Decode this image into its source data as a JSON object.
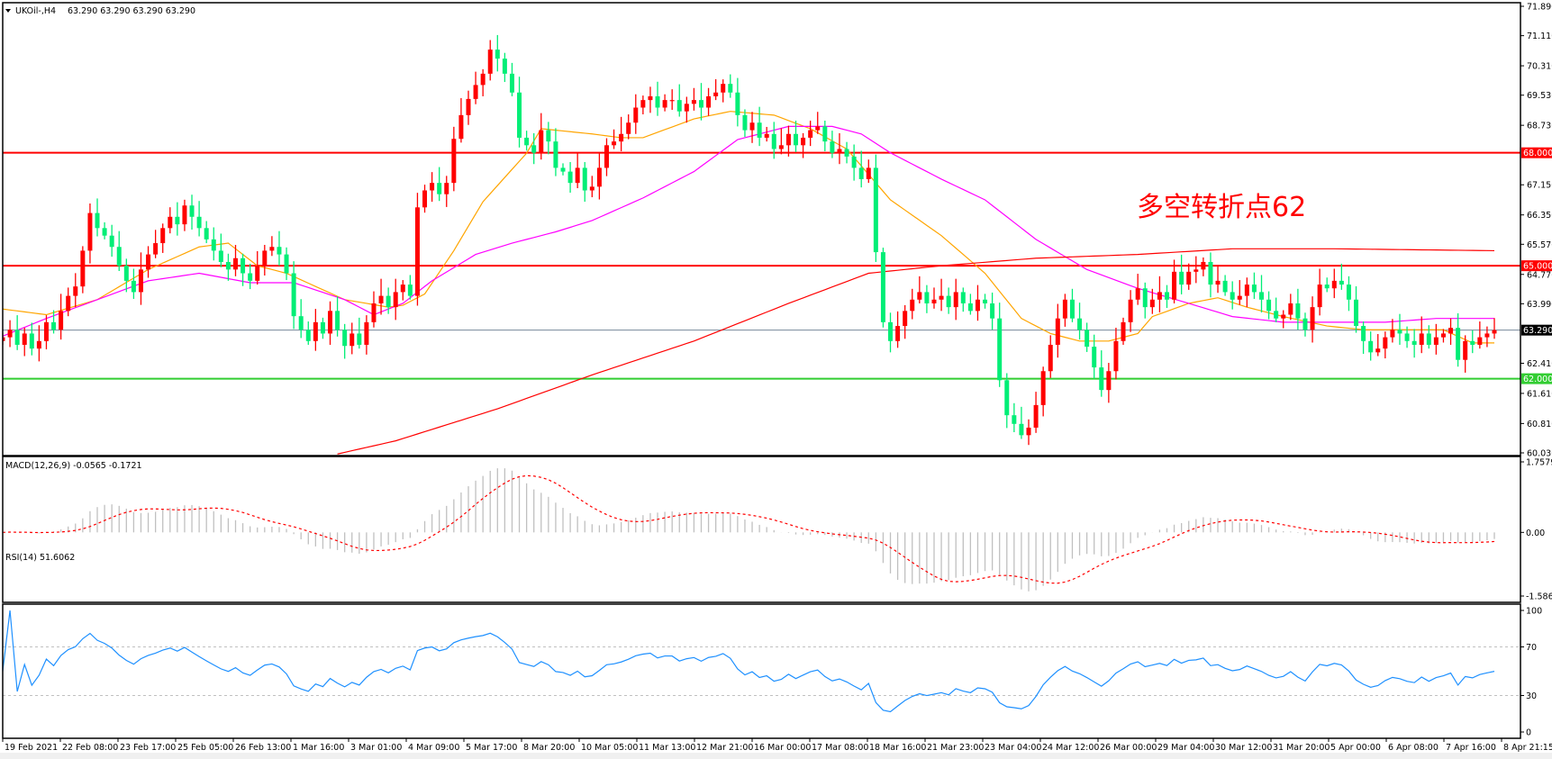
{
  "header": {
    "symbol_label": "UKOil-,H4",
    "ohlc_values": "63.290 63.290 63.290 63.290"
  },
  "annotation": {
    "text": "多空转折点62",
    "color": "#ff0000"
  },
  "colors": {
    "up_candle": "#ff0000",
    "down_candle": "#00ee76",
    "ma_fast": "#ffa500",
    "ma_mid": "#ff00ff",
    "ma_slow": "#ff0000",
    "rsi_line": "#1e90ff",
    "macd_hist": "#c0c0c0",
    "macd_signal": "#ff0000"
  },
  "chart_data": [
    {
      "type": "candlestick",
      "title": "UKOil-,H4",
      "ylim": [
        60.03,
        71.89
      ],
      "price_ticks": [
        "71.890",
        "71.110",
        "70.310",
        "69.530",
        "68.730",
        "67.150",
        "66.350",
        "65.570",
        "64.770",
        "63.990",
        "62.410",
        "61.610",
        "60.810",
        "60.030"
      ],
      "time_ticks": [
        "19 Feb 2021",
        "22 Feb 08:00",
        "23 Feb 17:00",
        "25 Feb 05:00",
        "26 Feb 13:00",
        "1 Mar 16:00",
        "3 Mar 01:00",
        "4 Mar 09:00",
        "5 Mar 17:00",
        "8 Mar 20:00",
        "10 Mar 05:00",
        "11 Mar 13:00",
        "12 Mar 21:00",
        "16 Mar 00:00",
        "17 Mar 08:00",
        "18 Mar 16:00",
        "21 Mar 23:00",
        "23 Mar 04:00",
        "24 Mar 12:00",
        "26 Mar 00:00",
        "29 Mar 04:00",
        "30 Mar 12:00",
        "31 Mar 20:00",
        "5 Apr 00:00",
        "6 Apr 08:00",
        "7 Apr 16:00",
        "8 Apr 21:15"
      ],
      "closes": [
        63.1,
        63.3,
        62.9,
        63.2,
        62.8,
        63.0,
        63.5,
        63.3,
        63.8,
        64.2,
        64.45,
        65.4,
        66.4,
        66.0,
        65.8,
        65.5,
        65.0,
        64.6,
        64.3,
        64.9,
        65.3,
        65.6,
        66.0,
        66.3,
        66.1,
        66.6,
        66.3,
        66.0,
        65.7,
        65.4,
        65.1,
        64.9,
        65.2,
        64.8,
        64.6,
        65.0,
        65.4,
        65.5,
        65.3,
        64.8,
        63.66,
        63.3,
        63.0,
        63.5,
        63.2,
        63.8,
        63.3,
        62.87,
        63.2,
        62.9,
        63.5,
        64.0,
        64.2,
        63.9,
        64.3,
        64.5,
        64.2,
        66.55,
        67.0,
        67.2,
        66.9,
        67.2,
        68.37,
        69.0,
        69.43,
        69.8,
        70.1,
        70.74,
        70.5,
        70.1,
        69.6,
        68.4,
        68.2,
        68.0,
        68.6,
        68.3,
        67.6,
        67.5,
        67.2,
        67.6,
        67.0,
        67.1,
        67.6,
        68.2,
        68.3,
        68.5,
        68.8,
        69.2,
        69.4,
        69.5,
        69.2,
        69.4,
        69.4,
        69.1,
        69.3,
        69.4,
        69.2,
        69.5,
        69.6,
        69.83,
        69.6,
        69.0,
        68.6,
        68.8,
        68.4,
        68.5,
        68.1,
        68.2,
        68.5,
        68.2,
        68.4,
        68.6,
        68.7,
        68.3,
        68.0,
        68.1,
        67.9,
        67.6,
        67.3,
        67.6,
        65.36,
        63.5,
        63.0,
        63.4,
        63.8,
        64.1,
        64.3,
        64.0,
        64.1,
        64.2,
        63.9,
        64.3,
        64.0,
        63.8,
        64.1,
        64.0,
        63.6,
        61.96,
        61.03,
        60.8,
        60.5,
        60.7,
        61.3,
        62.2,
        62.9,
        63.6,
        64.1,
        63.6,
        63.3,
        62.85,
        62.3,
        61.7,
        62.2,
        63.0,
        63.5,
        64.1,
        64.4,
        63.9,
        64.1,
        64.3,
        64.1,
        64.84,
        64.5,
        64.84,
        64.9,
        65.1,
        64.5,
        64.6,
        64.3,
        64.1,
        64.2,
        64.5,
        64.3,
        64.1,
        63.8,
        63.6,
        63.7,
        64.0,
        63.6,
        63.3,
        63.9,
        64.5,
        64.4,
        64.6,
        64.5,
        64.1,
        63.4,
        63.0,
        62.7,
        62.8,
        63.1,
        63.3,
        63.2,
        63.0,
        62.9,
        63.2,
        62.9,
        63.1,
        63.2,
        63.35,
        62.5,
        63.0,
        62.9,
        63.1,
        63.2,
        63.29
      ],
      "moving_averages": [
        {
          "color": "#ffa500",
          "points": [
            [
              0,
              63.85
            ],
            [
              6,
              63.7
            ],
            [
              13,
              64.1
            ],
            [
              20,
              64.9
            ],
            [
              27,
              65.5
            ],
            [
              31,
              65.6
            ],
            [
              35,
              65.0
            ],
            [
              39,
              64.8
            ],
            [
              43,
              64.45
            ],
            [
              47,
              64.1
            ],
            [
              53,
              63.9
            ],
            [
              55,
              63.95
            ],
            [
              58,
              64.25
            ],
            [
              62,
              65.4
            ],
            [
              66,
              66.7
            ],
            [
              72,
              67.99
            ],
            [
              74,
              68.64
            ],
            [
              81,
              68.5
            ],
            [
              85,
              68.4
            ],
            [
              88,
              68.4
            ],
            [
              95,
              68.9
            ],
            [
              100,
              69.1
            ],
            [
              106,
              69.0
            ],
            [
              111,
              68.64
            ],
            [
              116,
              68.1
            ],
            [
              122,
              66.75
            ],
            [
              129,
              65.8
            ],
            [
              135,
              64.8
            ],
            [
              140,
              63.6
            ],
            [
              144,
              63.2
            ],
            [
              148,
              63.0
            ],
            [
              152,
              63.0
            ],
            [
              156,
              63.2
            ],
            [
              158,
              63.65
            ],
            [
              163,
              64.0
            ],
            [
              167,
              64.15
            ],
            [
              171,
              63.9
            ],
            [
              176,
              63.65
            ],
            [
              182,
              63.4
            ],
            [
              187,
              63.3
            ],
            [
              192,
              63.3
            ],
            [
              198,
              63.3
            ],
            [
              202,
              62.95
            ],
            [
              205,
              62.95
            ]
          ]
        },
        {
          "color": "#ff00ff",
          "points": [
            [
              0,
              63.13
            ],
            [
              6,
              63.6
            ],
            [
              13,
              64.1
            ],
            [
              20,
              64.6
            ],
            [
              27,
              64.8
            ],
            [
              34,
              64.55
            ],
            [
              40,
              64.55
            ],
            [
              47,
              64.1
            ],
            [
              51,
              63.7
            ],
            [
              55,
              64.0
            ],
            [
              59,
              64.6
            ],
            [
              65,
              65.3
            ],
            [
              70,
              65.6
            ],
            [
              76,
              65.9
            ],
            [
              81,
              66.2
            ],
            [
              88,
              66.8
            ],
            [
              95,
              67.5
            ],
            [
              101,
              68.35
            ],
            [
              108,
              68.7
            ],
            [
              114,
              68.7
            ],
            [
              118,
              68.5
            ],
            [
              122,
              68.0
            ],
            [
              129,
              67.3
            ],
            [
              135,
              66.75
            ],
            [
              142,
              65.7
            ],
            [
              149,
              64.9
            ],
            [
              156,
              64.4
            ],
            [
              163,
              64.0
            ],
            [
              169,
              63.65
            ],
            [
              176,
              63.5
            ],
            [
              183,
              63.5
            ],
            [
              190,
              63.5
            ],
            [
              197,
              63.6
            ],
            [
              205,
              63.6
            ]
          ]
        },
        {
          "color": "#ff0000",
          "points": [
            [
              46,
              60.0
            ],
            [
              54,
              60.35
            ],
            [
              68,
              61.2
            ],
            [
              81,
              62.1
            ],
            [
              95,
              63.0
            ],
            [
              108,
              64.0
            ],
            [
              119,
              64.8
            ],
            [
              129,
              65.0
            ],
            [
              142,
              65.2
            ],
            [
              156,
              65.3
            ],
            [
              169,
              65.45
            ],
            [
              183,
              65.45
            ],
            [
              205,
              65.4
            ]
          ]
        }
      ],
      "levels": [
        {
          "price": "68.000",
          "color": "#ff0000"
        },
        {
          "price": "65.000",
          "color": "#ff0000"
        },
        {
          "price": "62.000",
          "color": "#32cd32"
        }
      ],
      "current_price": "63.290"
    },
    {
      "type": "macd",
      "label": "MACD(12,26,9) -0.0565 -0.1721",
      "params": [
        12,
        26,
        9
      ],
      "ylim": [
        -1.5867,
        1.7579
      ],
      "ticks": [
        "1.7579",
        "0.00",
        "-1.5867"
      ]
    },
    {
      "type": "rsi",
      "label": "RSI(14) 51.6062",
      "period": 14,
      "ylim": [
        0,
        100
      ],
      "ticks": [
        "100",
        "70",
        "30",
        "0"
      ],
      "levels": [
        70,
        30
      ]
    }
  ]
}
